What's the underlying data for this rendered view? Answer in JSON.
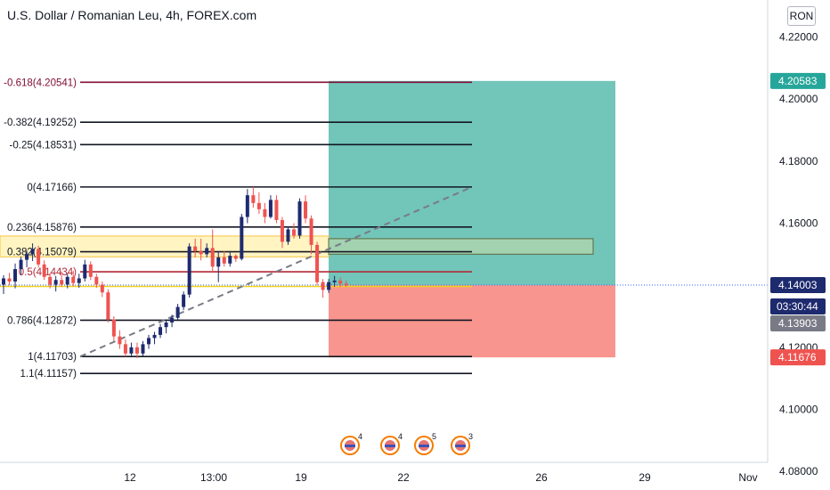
{
  "header": {
    "title": "U.S. Dollar / Romanian Leu, 4h, FOREX.com"
  },
  "currency_button": {
    "label": "RON"
  },
  "price_axis": {
    "countdown": "03:30:44"
  },
  "colors": {
    "up_candle": "#1e2a6e",
    "down_candle": "#ef5350",
    "target_zone": "#72c5b9",
    "stop_zone": "#f8958e",
    "highlight_zone": "#fff4c2",
    "fib_line": "#131722",
    "fib_extension": "#800f35",
    "fib_half": "#b02a37"
  },
  "event_icons": [
    {
      "count": "4"
    },
    {
      "count": "4"
    },
    {
      "count": "5"
    },
    {
      "count": "3"
    }
  ],
  "chart_data": {
    "type": "candlestick",
    "title": "U.S. Dollar / Romanian Leu, 4h, FOREX.com",
    "y_ticks": [
      "4.22000",
      "4.20000",
      "4.18000",
      "4.16000",
      "4.14000",
      "4.12000",
      "4.10000",
      "4.08000"
    ],
    "ylim": [
      4.0733,
      4.2344
    ],
    "x_ticks": [
      "12",
      "13:00",
      "19",
      "22",
      "26",
      "29",
      "Nov"
    ],
    "price_labels": [
      {
        "value": "4.20583",
        "price": 4.20583,
        "kind": "target"
      },
      {
        "value": "4.14003",
        "price": 4.14003,
        "kind": "current"
      },
      {
        "value": "4.13903",
        "price": 4.13903,
        "kind": "bid"
      },
      {
        "value": "4.11676",
        "price": 4.11676,
        "kind": "stop"
      }
    ],
    "fib_levels": [
      {
        "label": "-0.618(4.20541)",
        "price": 4.20541,
        "kind": "extension"
      },
      {
        "label": "-0.382(4.19252)",
        "price": 4.19252,
        "kind": "normal"
      },
      {
        "label": "-0.25(4.18531)",
        "price": 4.18531,
        "kind": "normal"
      },
      {
        "label": "0(4.17166)",
        "price": 4.17166,
        "kind": "normal"
      },
      {
        "label": "0.236(4.15876)",
        "price": 4.15876,
        "kind": "normal"
      },
      {
        "label": "0.382(4.15079)",
        "price": 4.15079,
        "kind": "normal"
      },
      {
        "label": "0.5(4.14434)",
        "price": 4.14434,
        "kind": "half"
      },
      {
        "label": "0.786(4.12872)",
        "price": 4.12872,
        "kind": "normal"
      },
      {
        "label": "1(4.11703)",
        "price": 4.11703,
        "kind": "normal"
      },
      {
        "label": "1.1(4.11157)",
        "price": 4.11157,
        "kind": "normal"
      }
    ],
    "position": {
      "entry": 4.14003,
      "target": 4.20583,
      "stop": 4.11676
    },
    "highlight_zone": {
      "top": 4.155,
      "bottom": 4.15
    },
    "candles": [
      {
        "o": 4.1402,
        "h": 4.1432,
        "l": 4.1372,
        "c": 4.1422
      },
      {
        "o": 4.1422,
        "h": 4.144,
        "l": 4.14,
        "c": 4.1412
      },
      {
        "o": 4.1412,
        "h": 4.147,
        "l": 4.139,
        "c": 4.1452
      },
      {
        "o": 4.1452,
        "h": 4.1492,
        "l": 4.1432,
        "c": 4.1482
      },
      {
        "o": 4.1482,
        "h": 4.1512,
        "l": 4.1458,
        "c": 4.15
      },
      {
        "o": 4.15,
        "h": 4.1535,
        "l": 4.1478,
        "c": 4.1517
      },
      {
        "o": 4.1517,
        "h": 4.1527,
        "l": 4.1457,
        "c": 4.1467
      },
      {
        "o": 4.1467,
        "h": 4.148,
        "l": 4.1417,
        "c": 4.1427
      },
      {
        "o": 4.1427,
        "h": 4.144,
        "l": 4.139,
        "c": 4.1402
      },
      {
        "o": 4.1402,
        "h": 4.143,
        "l": 4.138,
        "c": 4.1417
      },
      {
        "o": 4.1417,
        "h": 4.1445,
        "l": 4.1395,
        "c": 4.1402
      },
      {
        "o": 4.1402,
        "h": 4.1438,
        "l": 4.139,
        "c": 4.1427
      },
      {
        "o": 4.1427,
        "h": 4.1447,
        "l": 4.1397,
        "c": 4.1407
      },
      {
        "o": 4.1407,
        "h": 4.1437,
        "l": 4.1392,
        "c": 4.1422
      },
      {
        "o": 4.1422,
        "h": 4.1482,
        "l": 4.1412,
        "c": 4.1467
      },
      {
        "o": 4.1467,
        "h": 4.1477,
        "l": 4.1417,
        "c": 4.1427
      },
      {
        "o": 4.1427,
        "h": 4.1437,
        "l": 4.1392,
        "c": 4.1402
      },
      {
        "o": 4.1402,
        "h": 4.1412,
        "l": 4.1362,
        "c": 4.1377
      },
      {
        "o": 4.1377,
        "h": 4.1387,
        "l": 4.128,
        "c": 4.129
      },
      {
        "o": 4.129,
        "h": 4.13,
        "l": 4.122,
        "c": 4.1235
      },
      {
        "o": 4.1235,
        "h": 4.1255,
        "l": 4.1195,
        "c": 4.121
      },
      {
        "o": 4.121,
        "h": 4.1225,
        "l": 4.117,
        "c": 4.118
      },
      {
        "o": 4.118,
        "h": 4.1215,
        "l": 4.117,
        "c": 4.12
      },
      {
        "o": 4.12,
        "h": 4.1215,
        "l": 4.1165,
        "c": 4.118
      },
      {
        "o": 4.118,
        "h": 4.122,
        "l": 4.1172,
        "c": 4.121
      },
      {
        "o": 4.121,
        "h": 4.124,
        "l": 4.1195,
        "c": 4.123
      },
      {
        "o": 4.123,
        "h": 4.125,
        "l": 4.121,
        "c": 4.124
      },
      {
        "o": 4.124,
        "h": 4.1275,
        "l": 4.123,
        "c": 4.1265
      },
      {
        "o": 4.1265,
        "h": 4.129,
        "l": 4.1245,
        "c": 4.128
      },
      {
        "o": 4.128,
        "h": 4.1305,
        "l": 4.1265,
        "c": 4.1295
      },
      {
        "o": 4.1295,
        "h": 4.134,
        "l": 4.1285,
        "c": 4.133
      },
      {
        "o": 4.133,
        "h": 4.138,
        "l": 4.132,
        "c": 4.137
      },
      {
        "o": 4.137,
        "h": 4.1535,
        "l": 4.136,
        "c": 4.1525
      },
      {
        "o": 4.1525,
        "h": 4.155,
        "l": 4.149,
        "c": 4.151
      },
      {
        "o": 4.151,
        "h": 4.155,
        "l": 4.148,
        "c": 4.15
      },
      {
        "o": 4.15,
        "h": 4.1535,
        "l": 4.149,
        "c": 4.152
      },
      {
        "o": 4.152,
        "h": 4.158,
        "l": 4.144,
        "c": 4.146
      },
      {
        "o": 4.146,
        "h": 4.151,
        "l": 4.141,
        "c": 4.149
      },
      {
        "o": 4.149,
        "h": 4.151,
        "l": 4.146,
        "c": 4.147
      },
      {
        "o": 4.147,
        "h": 4.151,
        "l": 4.146,
        "c": 4.1495
      },
      {
        "o": 4.1495,
        "h": 4.15,
        "l": 4.1475,
        "c": 4.1485
      },
      {
        "o": 4.1485,
        "h": 4.163,
        "l": 4.148,
        "c": 4.162
      },
      {
        "o": 4.162,
        "h": 4.171,
        "l": 4.16,
        "c": 4.169
      },
      {
        "o": 4.169,
        "h": 4.1717,
        "l": 4.165,
        "c": 4.1665
      },
      {
        "o": 4.1665,
        "h": 4.17,
        "l": 4.163,
        "c": 4.1645
      },
      {
        "o": 4.1645,
        "h": 4.1665,
        "l": 4.16,
        "c": 4.162
      },
      {
        "o": 4.162,
        "h": 4.169,
        "l": 4.1615,
        "c": 4.1675
      },
      {
        "o": 4.1675,
        "h": 4.169,
        "l": 4.16,
        "c": 4.161
      },
      {
        "o": 4.161,
        "h": 4.162,
        "l": 4.152,
        "c": 4.154
      },
      {
        "o": 4.154,
        "h": 4.159,
        "l": 4.153,
        "c": 4.158
      },
      {
        "o": 4.158,
        "h": 4.16,
        "l": 4.155,
        "c": 4.156
      },
      {
        "o": 4.156,
        "h": 4.168,
        "l": 4.155,
        "c": 4.167
      },
      {
        "o": 4.167,
        "h": 4.169,
        "l": 4.16,
        "c": 4.1615
      },
      {
        "o": 4.1615,
        "h": 4.1625,
        "l": 4.15,
        "c": 4.153
      },
      {
        "o": 4.153,
        "h": 4.154,
        "l": 4.14,
        "c": 4.141
      },
      {
        "o": 4.141,
        "h": 4.142,
        "l": 4.136,
        "c": 4.1385
      },
      {
        "o": 4.1385,
        "h": 4.142,
        "l": 4.1375,
        "c": 4.141
      },
      {
        "o": 4.141,
        "h": 4.143,
        "l": 4.1395,
        "c": 4.1415
      },
      {
        "o": 4.1415,
        "h": 4.1425,
        "l": 4.1395,
        "c": 4.1405
      },
      {
        "o": 4.1405,
        "h": 4.1415,
        "l": 4.1395,
        "c": 4.14
      }
    ]
  }
}
